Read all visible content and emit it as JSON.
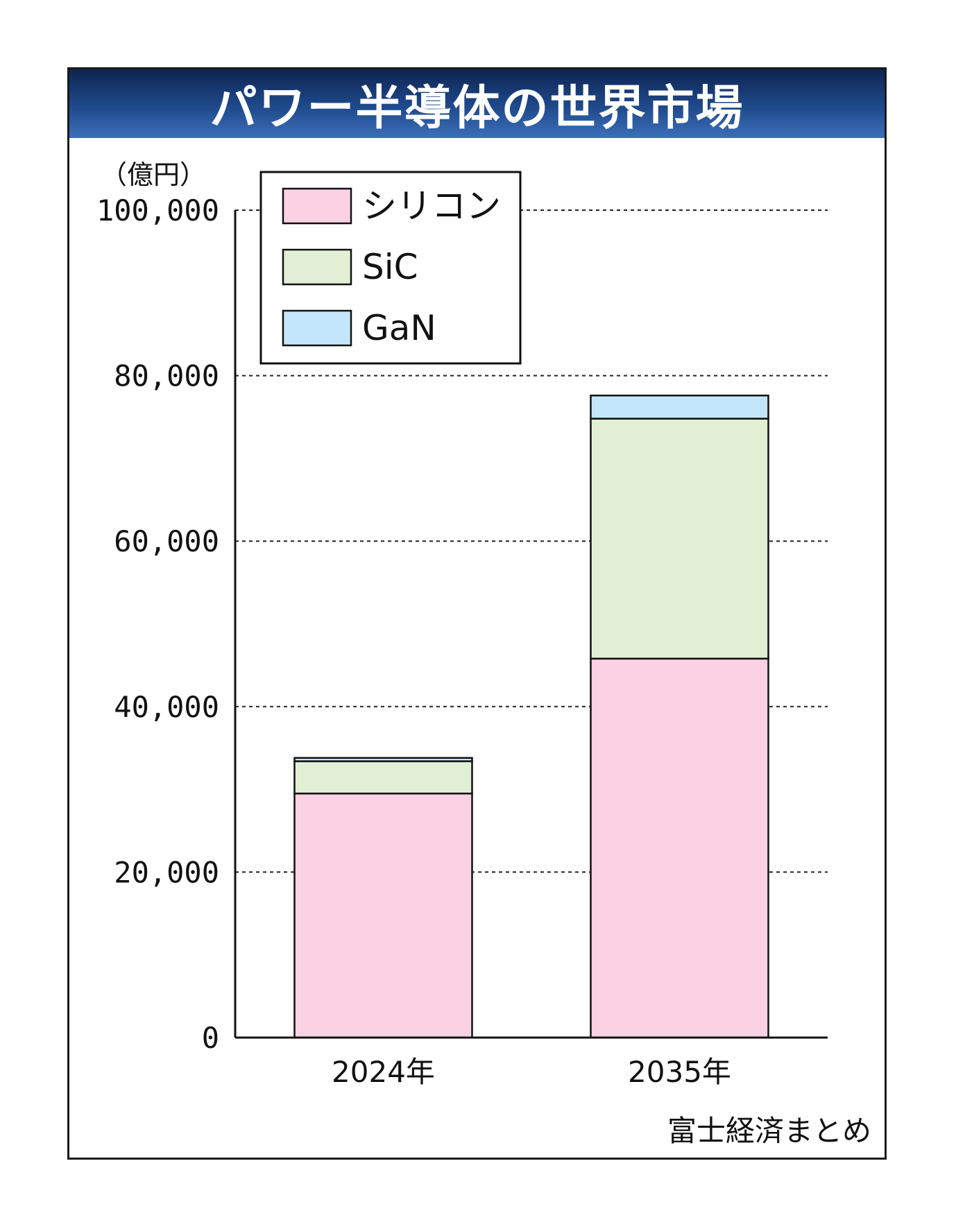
{
  "chart_data": {
    "type": "bar",
    "stacked": true,
    "title": "パワー半導体の世界市場",
    "unit_label": "（億円）",
    "categories": [
      "2024年",
      "2035年"
    ],
    "series": [
      {
        "name": "シリコン",
        "values": [
          29500,
          45800
        ],
        "color": "#fbd1e4"
      },
      {
        "name": "SiC",
        "values": [
          3900,
          29000
        ],
        "color": "#e2efd4"
      },
      {
        "name": "GaN",
        "values": [
          400,
          2800
        ],
        "color": "#c4e6fa"
      }
    ],
    "yticks": [
      0,
      20000,
      40000,
      60000,
      80000,
      100000
    ],
    "ytick_labels": [
      "0",
      "20,000",
      "40,000",
      "60,000",
      "80,000",
      "100,000"
    ],
    "ylim": [
      0,
      100000
    ],
    "grid": true,
    "legend_position": "top-left",
    "source": "富士経済まとめ"
  }
}
